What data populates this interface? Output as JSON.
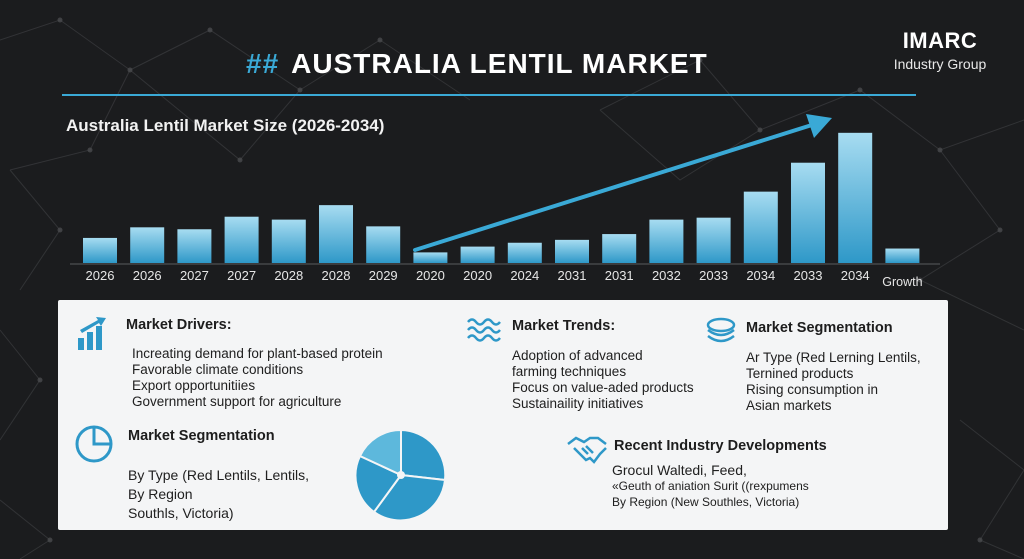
{
  "header": {
    "hash": "##",
    "title": "AUSTRALIA LENTIL MARKET",
    "logo_name": "IMARC",
    "logo_sub": "Industry Group"
  },
  "colors": {
    "accent": "#3aa9d6",
    "bar_top": "#a7dcf1",
    "bar_bottom": "#2e98c8",
    "background": "#1b1c1e",
    "panel": "#f4f5f6"
  },
  "chart_data": {
    "type": "bar",
    "title": "Australia Lentil Market Size (2026-2034)",
    "categories": [
      "2026",
      "2026",
      "2027",
      "2027",
      "2028",
      "2028",
      "2029",
      "2020",
      "2020",
      "2024",
      "2031",
      "2031",
      "2032",
      "2033",
      "2034",
      "2033",
      "2034",
      "Growth"
    ],
    "values": [
      26,
      37,
      35,
      48,
      45,
      60,
      38,
      11,
      17,
      21,
      24,
      30,
      45,
      47,
      74,
      104,
      135,
      15
    ],
    "ylim": [
      0,
      140
    ],
    "xlabel": "",
    "ylabel": "",
    "grid": false,
    "annotations": [
      "upward trend arrow from 2029 to 2034"
    ]
  },
  "drivers": {
    "title": "Market Drivers:",
    "icon": "growth-bars-icon",
    "items": [
      "Increating demand for plant-based protein",
      "Favorable climate conditions",
      "Export opportunitiies",
      "Government support for agriculture"
    ]
  },
  "trends": {
    "title": "Market Trends:",
    "icon": "waves-icon",
    "items": [
      "Adoption of advanced",
      "farming techniques",
      "Focus on value-aded products",
      "Sustainaility initiatives"
    ]
  },
  "segmentation_top": {
    "title": "Market Segmentation",
    "icon": "layers-icon",
    "items": [
      "Ar Type (Red Lerning Lentils,",
      "Ternined products",
      "Rising consumption in",
      "Asian markets"
    ]
  },
  "segmentation": {
    "title": "Market Segmentation",
    "icon": "pie-outline-icon",
    "items": [
      "By Type (Red Lentils, Lentils,",
      "By Region",
      "Southls, Victoria)"
    ]
  },
  "developments": {
    "title": "Recent Industry Developments",
    "icon": "handshake-icon",
    "items": [
      "Grocul Waltedi, Feed,",
      "«Geuth of aniation Surit ((rexpumens",
      "By Region (New Southles, Victoria)"
    ]
  }
}
